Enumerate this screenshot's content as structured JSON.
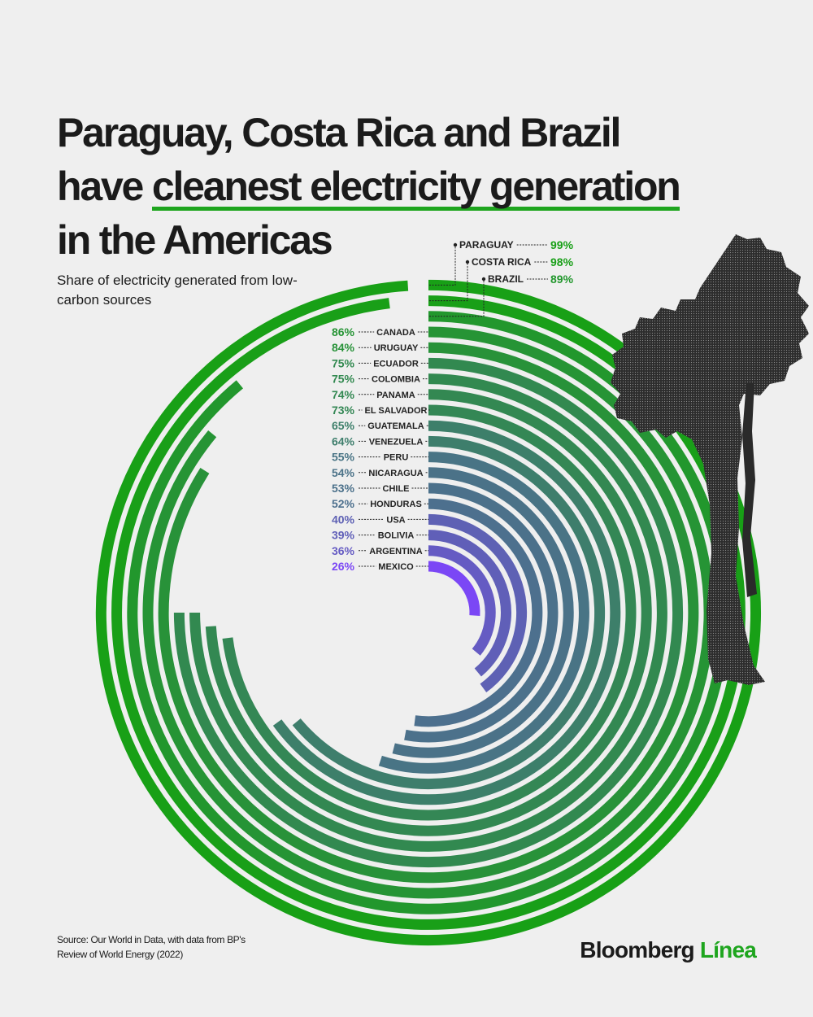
{
  "title": {
    "line1": "Paraguay, Costa Rica and Brazil",
    "line2_pre": "have ",
    "line2_highlight": "cleanest electricity generation",
    "line3": "in the Americas"
  },
  "subtitle": "Share of electricity generated from low-carbon sources",
  "source": "Source: Our World in Data, with data from BP's Review of World Energy (2022)",
  "brand": {
    "name": "Bloomberg",
    "accent": "Línea"
  },
  "colors": {
    "green": "#18a016",
    "purple": "#7b47f5",
    "highlight": "#1ea51e"
  },
  "icons": {
    "tree": "tree-silhouette-icon"
  },
  "chart_data": {
    "type": "radial-bar",
    "unit": "%",
    "range": [
      0,
      100
    ],
    "categories": [
      "PARAGUAY",
      "COSTA RICA",
      "BRAZIL",
      "CANADA",
      "URUGUAY",
      "ECUADOR",
      "COLOMBIA",
      "PANAMA",
      "EL SALVADOR",
      "GUATEMALA",
      "VENEZUELA",
      "PERU",
      "NICARAGUA",
      "CHILE",
      "HONDURAS",
      "USA",
      "BOLIVIA",
      "ARGENTINA",
      "MEXICO"
    ],
    "values": [
      99,
      98,
      89,
      86,
      84,
      75,
      75,
      74,
      73,
      65,
      64,
      55,
      54,
      53,
      52,
      40,
      39,
      36,
      26
    ],
    "labels": [
      "99%",
      "98%",
      "89%",
      "86%",
      "84%",
      "75%",
      "75%",
      "74%",
      "73%",
      "65%",
      "64%",
      "55%",
      "54%",
      "53%",
      "52%",
      "40%",
      "39%",
      "36%",
      "26%"
    ]
  }
}
